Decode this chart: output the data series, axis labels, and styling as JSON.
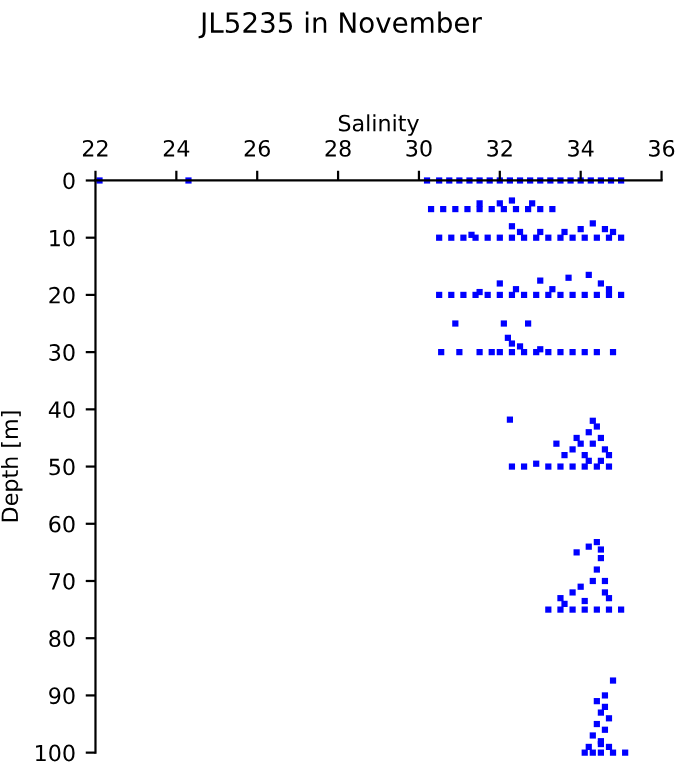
{
  "chart_data": {
    "type": "scatter",
    "title": "JL5235 in November",
    "xlabel": "Salinity",
    "ylabel": "Depth [m]",
    "xlim": [
      22,
      36
    ],
    "xticks": [
      22,
      24,
      26,
      28,
      30,
      32,
      34,
      36
    ],
    "ylim": [
      100,
      0
    ],
    "yticks": [
      0,
      10,
      20,
      30,
      40,
      50,
      60,
      70,
      80,
      90,
      100
    ],
    "grid": false,
    "marker": "square",
    "legend": false,
    "series": [
      {
        "color": "#0000ff",
        "x": [
          22.1,
          24.3,
          30.2,
          30.5,
          30.75,
          31,
          31.25,
          31.5,
          31.75,
          32,
          32.25,
          32.5,
          32.75,
          33,
          33.25,
          33.5,
          33.75,
          34,
          34.25,
          34.5,
          34.75,
          35,
          30.3,
          30.6,
          30.9,
          31.2,
          31.5,
          31.8,
          32.1,
          32.4,
          32.7,
          33,
          33.3,
          31.5,
          32,
          32.3,
          32.8,
          30.5,
          30.8,
          31.1,
          31.4,
          31.7,
          32,
          32.3,
          32.6,
          32.9,
          33.2,
          33.5,
          33.8,
          34.1,
          34.4,
          34.7,
          35,
          31.3,
          32.3,
          32.5,
          33,
          33.6,
          34,
          34.3,
          34.6,
          34.8,
          30.5,
          30.8,
          31.1,
          31.4,
          31.7,
          32,
          32.3,
          32.6,
          32.9,
          33.2,
          33.5,
          33.8,
          34.1,
          34.4,
          34.7,
          35,
          31.5,
          32,
          32.4,
          33,
          33.3,
          33.7,
          34.2,
          34.5,
          34.7,
          30.55,
          31.0,
          31.5,
          31.8,
          32,
          32.3,
          32.6,
          32.9,
          33.2,
          33.5,
          33.8,
          34.1,
          34.4,
          34.8,
          30.9,
          32.1,
          32.7,
          32.2,
          32.3,
          32.5,
          33,
          32.3,
          32.6,
          32.9,
          33.2,
          33.5,
          33.8,
          34.1,
          34.4,
          34.7,
          32.25,
          33.4,
          33.6,
          33.8,
          33.9,
          34.0,
          34.1,
          34.2,
          34.3,
          34.4,
          34.5,
          34.6,
          34.3,
          34.5,
          34.7,
          34.2,
          33.2,
          33.5,
          33.8,
          34.1,
          34.4,
          34.7,
          35.0,
          33.5,
          33.8,
          34.0,
          34.3,
          34.6,
          34.4,
          34.5,
          34.4,
          34.2,
          33.9,
          34.5,
          34.7,
          34.1,
          33.6,
          34.6,
          34.1,
          34.3,
          34.5,
          34.8,
          35.1,
          34.2,
          34.5,
          34.3,
          34.6,
          34.4,
          34.7,
          34.5,
          34.6,
          34.4,
          34.6,
          34.8,
          34.5,
          34.7
        ],
        "values": [
          0,
          0,
          0,
          0,
          0,
          0,
          0,
          0,
          0,
          0,
          0,
          0,
          0,
          0,
          0,
          0,
          0,
          0,
          0,
          0,
          0,
          0,
          5,
          5,
          5,
          5,
          5,
          5,
          5,
          5,
          5,
          5,
          5,
          4,
          4,
          3.5,
          4,
          10,
          10,
          10,
          10,
          10,
          10,
          10,
          10,
          10,
          10,
          10,
          10,
          10,
          10,
          10,
          10,
          9.5,
          8,
          9,
          9,
          9,
          8.5,
          7.5,
          8.5,
          9,
          20,
          20,
          20,
          20,
          20,
          20,
          20,
          20,
          20,
          20,
          20,
          20,
          20,
          20,
          20,
          20,
          19.5,
          18,
          19,
          17.5,
          19,
          17,
          16.5,
          18,
          19,
          30,
          30,
          30,
          30,
          30,
          30,
          30,
          30,
          30,
          30,
          30,
          30,
          30,
          30,
          25,
          25,
          25,
          27.5,
          28.5,
          29,
          29.5,
          50,
          50,
          49.5,
          50,
          50,
          50,
          50,
          50,
          50,
          41.8,
          46,
          48,
          47,
          45,
          46,
          48,
          44,
          42,
          43,
          45,
          47,
          46,
          49,
          48,
          49,
          75,
          75,
          75,
          75,
          75,
          75,
          75,
          73,
          72,
          71,
          70,
          70,
          68,
          66,
          63.2,
          64,
          65,
          64.5,
          73,
          73.5,
          74,
          72,
          100,
          100,
          100,
          100,
          100,
          99,
          98,
          97,
          96,
          95,
          94,
          93,
          92,
          91,
          90,
          87.4,
          98.5,
          99
        ]
      }
    ]
  }
}
